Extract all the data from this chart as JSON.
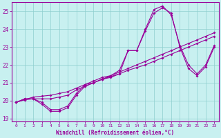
{
  "xlabel": "Windchill (Refroidissement éolien,°C)",
  "ylabel": "",
  "bg_color": "#c8f0f0",
  "line_color": "#990099",
  "xlim": [
    -0.5,
    23.5
  ],
  "ylim": [
    18.85,
    25.5
  ],
  "yticks": [
    19,
    20,
    21,
    22,
    23,
    24,
    25
  ],
  "xticks": [
    0,
    1,
    2,
    3,
    4,
    5,
    6,
    7,
    8,
    9,
    10,
    11,
    12,
    13,
    14,
    15,
    16,
    17,
    18,
    19,
    20,
    21,
    22,
    23
  ],
  "series": [
    [
      19.9,
      20.1,
      20.1,
      19.8,
      19.4,
      19.4,
      19.6,
      20.3,
      20.8,
      21.0,
      21.2,
      21.3,
      21.5,
      22.8,
      22.8,
      23.9,
      24.9,
      25.2,
      24.9,
      23.0,
      21.8,
      21.4,
      21.9,
      23.0
    ],
    [
      19.9,
      20.1,
      20.1,
      19.9,
      19.5,
      19.5,
      19.7,
      20.4,
      20.9,
      21.1,
      21.3,
      21.4,
      21.7,
      22.8,
      22.8,
      24.0,
      25.1,
      25.3,
      24.8,
      23.1,
      22.0,
      21.5,
      22.0,
      23.1
    ],
    [
      19.9,
      20.05,
      20.1,
      20.1,
      20.1,
      20.2,
      20.3,
      20.6,
      20.8,
      21.0,
      21.2,
      21.4,
      21.6,
      21.8,
      22.0,
      22.2,
      22.4,
      22.6,
      22.8,
      23.0,
      23.2,
      23.4,
      23.6,
      23.8
    ],
    [
      19.9,
      20.05,
      20.2,
      20.25,
      20.3,
      20.4,
      20.5,
      20.7,
      20.9,
      21.0,
      21.2,
      21.35,
      21.5,
      21.7,
      21.85,
      22.0,
      22.2,
      22.4,
      22.6,
      22.8,
      23.0,
      23.2,
      23.4,
      23.6
    ]
  ],
  "ytick_labels": [
    "19",
    "20",
    "21",
    "22",
    "23",
    "24",
    "25"
  ],
  "xlabel_fontsize": 5.5,
  "ytick_fontsize": 5.5,
  "xtick_fontsize": 4.5,
  "marker_size": 2.0,
  "line_width": 0.8,
  "grid_color": "#8ecece",
  "grid_lw": 0.5
}
